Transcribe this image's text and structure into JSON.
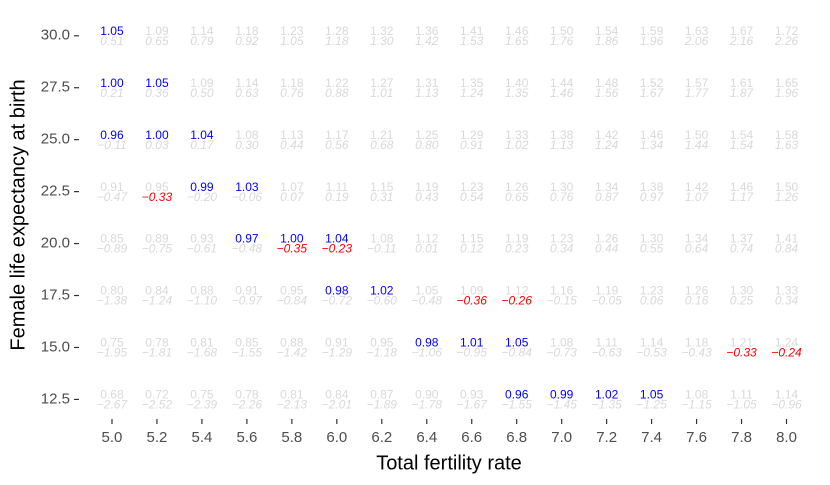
{
  "chart_data": {
    "type": "text_grid",
    "x_label": "Total fertility rate",
    "y_label": "Female life expectancy at birth",
    "xlim": [
      4.88,
      8.06
    ],
    "ylim": [
      11.75,
      31
    ],
    "xticks": [
      {
        "value": 5.0,
        "label": "5.0"
      },
      {
        "value": 5.2,
        "label": "5.2"
      },
      {
        "value": 5.4,
        "label": "5.4"
      },
      {
        "value": 5.6,
        "label": "5.6"
      },
      {
        "value": 5.8,
        "label": "5.8"
      },
      {
        "value": 6.0,
        "label": "6.0"
      },
      {
        "value": 6.2,
        "label": "6.2"
      },
      {
        "value": 6.4,
        "label": "6.4"
      },
      {
        "value": 6.6,
        "label": "6.6"
      },
      {
        "value": 6.8,
        "label": "6.8"
      },
      {
        "value": 7.0,
        "label": "7.0"
      },
      {
        "value": 7.2,
        "label": "7.2"
      },
      {
        "value": 7.4,
        "label": "7.4"
      },
      {
        "value": 7.6,
        "label": "7.6"
      },
      {
        "value": 7.8,
        "label": "7.8"
      },
      {
        "value": 8.0,
        "label": "8.0"
      }
    ],
    "yticks": [
      {
        "value": 12.5,
        "label": "12.5"
      },
      {
        "value": 15,
        "label": "15.0"
      },
      {
        "value": 17.5,
        "label": "17.5"
      },
      {
        "value": 20,
        "label": "20.0"
      },
      {
        "value": 22.5,
        "label": "22.5"
      },
      {
        "value": 25,
        "label": "25.0"
      },
      {
        "value": 27.5,
        "label": "27.5"
      },
      {
        "value": 30,
        "label": "30.0"
      }
    ],
    "muted_color": "#d9d9d9",
    "top_highlight_color": "#0000ff",
    "bottom_highlight_color": "#ff0000",
    "rows": [
      {
        "y": 30,
        "top": [
          "1.05",
          "1.09",
          "1.14",
          "1.18",
          "1.23",
          "1.28",
          "1.32",
          "1.36",
          "1.41",
          "1.46",
          "1.50",
          "1.54",
          "1.59",
          "1.63",
          "1.67",
          "1.72"
        ],
        "bottom": [
          "0.51",
          "0.65",
          "0.79",
          "0.92",
          "1.05",
          "1.18",
          "1.30",
          "1.42",
          "1.53",
          "1.65",
          "1.76",
          "1.86",
          "1.96",
          "2.06",
          "2.16",
          "2.26"
        ],
        "top_highlight": [
          0
        ],
        "bottom_highlight": []
      },
      {
        "y": 27.5,
        "top": [
          "1.00",
          "1.05",
          "1.09",
          "1.14",
          "1.18",
          "1.22",
          "1.27",
          "1.31",
          "1.35",
          "1.40",
          "1.44",
          "1.48",
          "1.52",
          "1.57",
          "1.61",
          "1.65"
        ],
        "bottom": [
          "0.21",
          "0.36",
          "0.50",
          "0.63",
          "0.76",
          "0.88",
          "1.01",
          "1.13",
          "1.24",
          "1.35",
          "1.46",
          "1.56",
          "1.67",
          "1.77",
          "1.87",
          "1.96"
        ],
        "top_highlight": [
          0,
          1
        ],
        "bottom_highlight": []
      },
      {
        "y": 25,
        "top": [
          "0.96",
          "1.00",
          "1.04",
          "1.08",
          "1.13",
          "1.17",
          "1.21",
          "1.25",
          "1.29",
          "1.33",
          "1.38",
          "1.42",
          "1.46",
          "1.50",
          "1.54",
          "1.58"
        ],
        "bottom": [
          "−0.11",
          "0.03",
          "0.17",
          "0.30",
          "0.44",
          "0.56",
          "0.68",
          "0.80",
          "0.91",
          "1.02",
          "1.13",
          "1.24",
          "1.34",
          "1.44",
          "1.54",
          "1.63"
        ],
        "top_highlight": [
          0,
          1,
          2
        ],
        "bottom_highlight": []
      },
      {
        "y": 22.5,
        "top": [
          "0.91",
          "0.95",
          "0.99",
          "1.03",
          "1.07",
          "1.11",
          "1.15",
          "1.19",
          "1.23",
          "1.26",
          "1.30",
          "1.34",
          "1.38",
          "1.42",
          "1.46",
          "1.50"
        ],
        "bottom": [
          "−0.47",
          "−0.33",
          "−0.20",
          "−0.06",
          "0.07",
          "0.19",
          "0.31",
          "0.43",
          "0.54",
          "0.65",
          "0.76",
          "0.87",
          "0.97",
          "1.07",
          "1.17",
          "1.26"
        ],
        "top_highlight": [
          2,
          3
        ],
        "bottom_highlight": [
          1
        ]
      },
      {
        "y": 20,
        "top": [
          "0.85",
          "0.89",
          "0.93",
          "0.97",
          "1.00",
          "1.04",
          "1.08",
          "1.12",
          "1.15",
          "1.19",
          "1.23",
          "1.26",
          "1.30",
          "1.34",
          "1.37",
          "1.41"
        ],
        "bottom": [
          "−0.89",
          "−0.75",
          "−0.61",
          "−0.48",
          "−0.35",
          "−0.23",
          "−0.11",
          "0.01",
          "0.12",
          "0.23",
          "0.34",
          "0.44",
          "0.55",
          "0.64",
          "0.74",
          "0.84"
        ],
        "top_highlight": [
          3,
          4,
          5
        ],
        "bottom_highlight": [
          4,
          5
        ]
      },
      {
        "y": 17.5,
        "top": [
          "0.80",
          "0.84",
          "0.88",
          "0.91",
          "0.95",
          "0.98",
          "1.02",
          "1.05",
          "1.09",
          "1.12",
          "1.16",
          "1.19",
          "1.23",
          "1.26",
          "1.30",
          "1.33"
        ],
        "bottom": [
          "−1.38",
          "−1.24",
          "−1.10",
          "−0.97",
          "−0.84",
          "−0.72",
          "−0.60",
          "−0.48",
          "−0.36",
          "−0.26",
          "−0.15",
          "−0.05",
          "0.06",
          "0.16",
          "0.25",
          "0.34"
        ],
        "top_highlight": [
          5,
          6
        ],
        "bottom_highlight": [
          8,
          9
        ]
      },
      {
        "y": 15,
        "top": [
          "0.75",
          "0.78",
          "0.81",
          "0.85",
          "0.88",
          "0.91",
          "0.95",
          "0.98",
          "1.01",
          "1.05",
          "1.08",
          "1.11",
          "1.14",
          "1.18",
          "1.21",
          "1.24"
        ],
        "bottom": [
          "−1.95",
          "−1.81",
          "−1.68",
          "−1.55",
          "−1.42",
          "−1.29",
          "−1.18",
          "−1.06",
          "−0.95",
          "−0.84",
          "−0.73",
          "−0.63",
          "−0.53",
          "−0.43",
          "−0.33",
          "−0.24"
        ],
        "top_highlight": [
          7,
          8,
          9
        ],
        "bottom_highlight": [
          14,
          15
        ]
      },
      {
        "y": 12.5,
        "top": [
          "0.68",
          "0.72",
          "0.75",
          "0.78",
          "0.81",
          "0.84",
          "0.87",
          "0.90",
          "0.93",
          "0.96",
          "0.99",
          "1.02",
          "1.05",
          "1.08",
          "1.11",
          "1.14"
        ],
        "bottom": [
          "−2.67",
          "−2.52",
          "−2.39",
          "−2.26",
          "−2.13",
          "−2.01",
          "−1.89",
          "−1.78",
          "−1.67",
          "−1.55",
          "−1.45",
          "−1.35",
          "−1.25",
          "−1.15",
          "−1.05",
          "−0.96"
        ],
        "top_highlight": [
          9,
          10,
          11,
          12
        ],
        "bottom_highlight": []
      }
    ]
  }
}
